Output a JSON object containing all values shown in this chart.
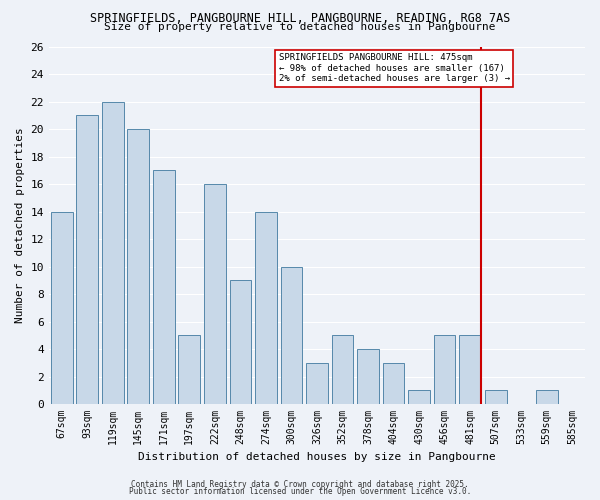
{
  "title1": "SPRINGFIELDS, PANGBOURNE HILL, PANGBOURNE, READING, RG8 7AS",
  "title2": "Size of property relative to detached houses in Pangbourne",
  "xlabel": "Distribution of detached houses by size in Pangbourne",
  "ylabel": "Number of detached properties",
  "bin_labels": [
    "67sqm",
    "93sqm",
    "119sqm",
    "145sqm",
    "171sqm",
    "197sqm",
    "222sqm",
    "248sqm",
    "274sqm",
    "300sqm",
    "326sqm",
    "352sqm",
    "378sqm",
    "404sqm",
    "430sqm",
    "456sqm",
    "481sqm",
    "507sqm",
    "533sqm",
    "559sqm",
    "585sqm"
  ],
  "counts": [
    14,
    21,
    22,
    20,
    17,
    5,
    16,
    9,
    14,
    10,
    3,
    5,
    4,
    3,
    1,
    5,
    5,
    1,
    0,
    1,
    0
  ],
  "bar_color": "#c8d8e8",
  "bar_edge_color": "#5588aa",
  "background_color": "#eef2f8",
  "grid_color": "#ffffff",
  "red_line_index": 16,
  "red_line_color": "#cc0000",
  "annotation_text": "SPRINGFIELDS PANGBOURNE HILL: 475sqm\n← 98% of detached houses are smaller (167)\n2% of semi-detached houses are larger (3) →",
  "annotation_box_color": "#ffffff",
  "annotation_border_color": "#cc0000",
  "footer_text1": "Contains HM Land Registry data © Crown copyright and database right 2025.",
  "footer_text2": "Public sector information licensed under the Open Government Licence v3.0.",
  "ylim": [
    0,
    26
  ],
  "yticks": [
    0,
    2,
    4,
    6,
    8,
    10,
    12,
    14,
    16,
    18,
    20,
    22,
    24,
    26
  ]
}
